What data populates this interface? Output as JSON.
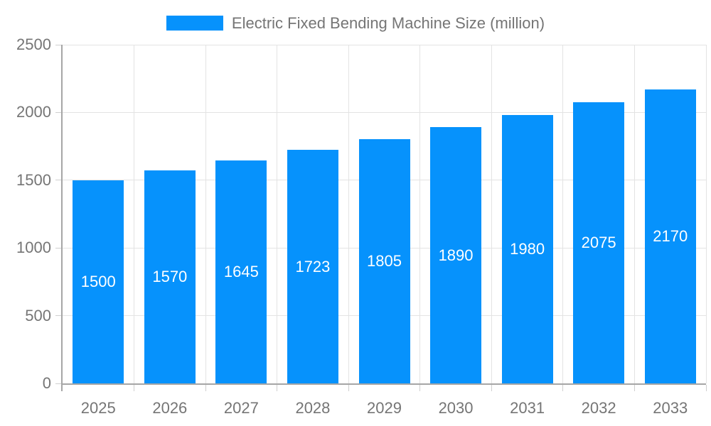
{
  "chart_data": {
    "type": "bar",
    "title": "",
    "legend_position": "top",
    "categories": [
      "2025",
      "2026",
      "2027",
      "2028",
      "2029",
      "2030",
      "2031",
      "2032",
      "2033"
    ],
    "series": [
      {
        "name": "Electric Fixed Bending Machine Size (million)",
        "values": [
          1500,
          1570,
          1645,
          1723,
          1805,
          1890,
          1980,
          2075,
          2170
        ]
      }
    ],
    "value_labels": [
      "1500",
      "1570",
      "1645",
      "1723",
      "1805",
      "1890",
      "1980",
      "2075",
      "2170"
    ],
    "xlabel": "",
    "ylabel": "",
    "ylim": [
      0,
      2500
    ],
    "yticks": [
      "0",
      "500",
      "1000",
      "1500",
      "2000",
      "2500"
    ],
    "grid": "on",
    "colors": {
      "bar": "#0692fc",
      "value_label": "#ffffff",
      "axis_text": "#757575",
      "grid_line": "#e3e3e3",
      "tick_line": "#cfcfcf",
      "axis_line": "#a6a6a6",
      "background": "#ffffff"
    }
  }
}
